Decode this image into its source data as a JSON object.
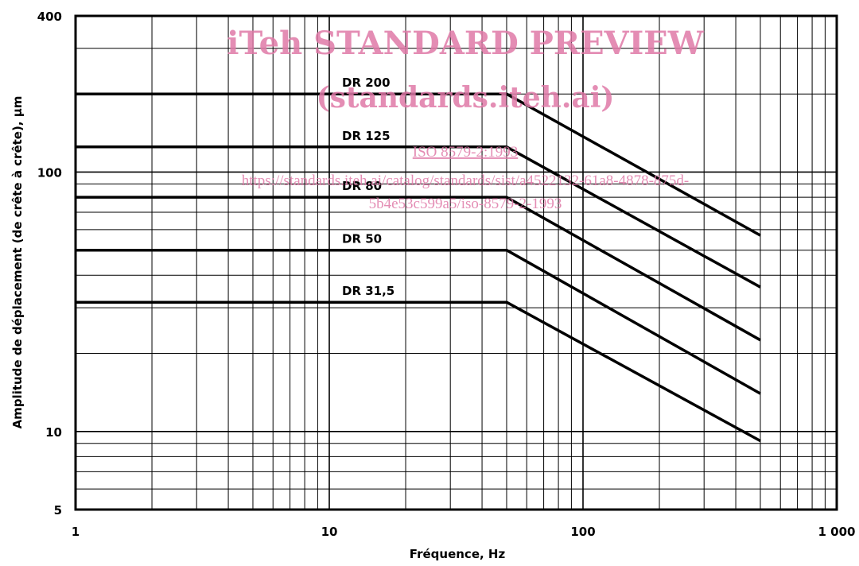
{
  "chart_data": {
    "type": "line",
    "xlabel": "Fréquence, Hz",
    "ylabel": "Amplitude de déplacement (de crête à crête), µm",
    "x_scale": "log",
    "y_scale": "log",
    "xlim": [
      1,
      1000
    ],
    "ylim": [
      5,
      400
    ],
    "x_ticks": [
      1,
      10,
      100,
      1000
    ],
    "x_tick_labels": [
      "1",
      "10",
      "100",
      "1 000"
    ],
    "y_ticks": [
      5,
      10,
      100,
      400
    ],
    "y_tick_labels": [
      "5",
      "10",
      "100",
      "400"
    ],
    "grid": true,
    "series": [
      {
        "name": "DR 200",
        "x": [
          1,
          50,
          500
        ],
        "y": [
          200,
          200,
          57
        ]
      },
      {
        "name": "DR 125",
        "x": [
          1,
          50,
          500
        ],
        "y": [
          125,
          125,
          36
        ]
      },
      {
        "name": "DR 80",
        "x": [
          1,
          50,
          500
        ],
        "y": [
          80,
          80,
          22.5
        ]
      },
      {
        "name": "DR 50",
        "x": [
          1,
          50,
          500
        ],
        "y": [
          50,
          50,
          14
        ]
      },
      {
        "name": "DR 31,5",
        "x": [
          1,
          50,
          500
        ],
        "y": [
          31.5,
          31.5,
          9.2
        ]
      }
    ]
  },
  "watermark": {
    "line1": "iTeh STANDARD PREVIEW",
    "line2": "(standards.iteh.ai)",
    "line3": "ISO 8579-2:1993",
    "line4": "https://standards.iteh.ai/catalog/standards/sist/a4522132-61a8-4878-875d-",
    "line5": "5b4e53c599a5/iso-8579-2-1993"
  }
}
